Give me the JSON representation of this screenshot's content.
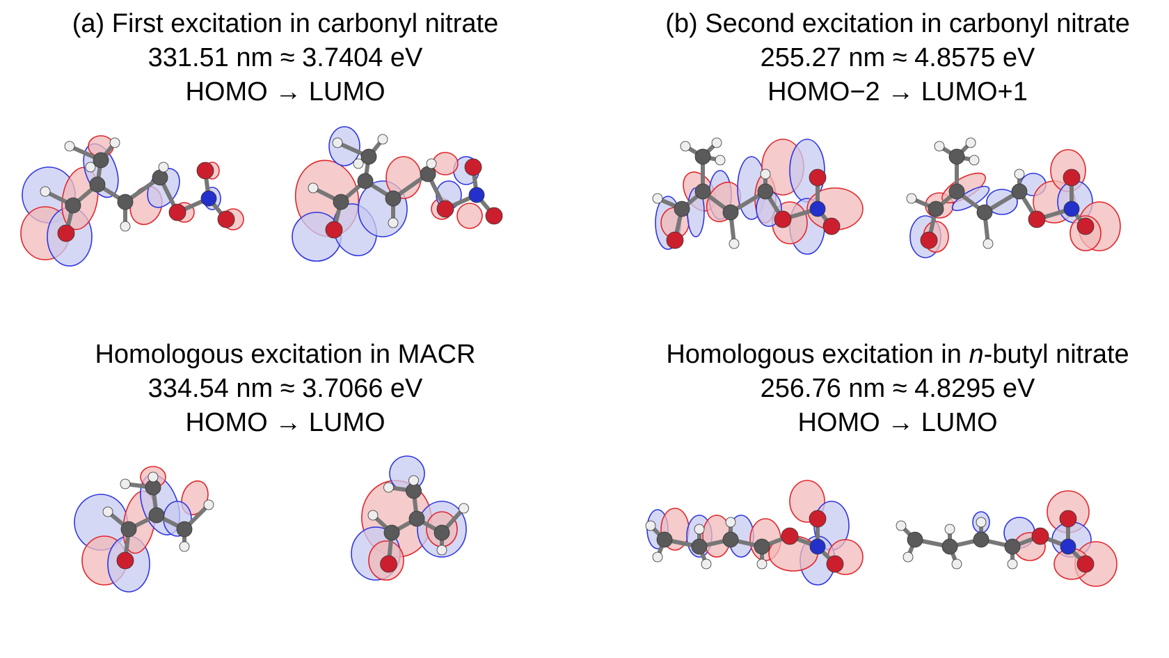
{
  "panels": [
    {
      "lines": [
        "(a) First excitation in carbonyl nitrate",
        "331.51 nm ≈ 3.7404 eV",
        "HOMO → LUMO"
      ]
    },
    {
      "lines": [
        "(b) Second excitation in carbonyl nitrate",
        "255.27 nm ≈ 4.8575 eV",
        "HOMO−2 → LUMO+1"
      ]
    },
    {
      "lines": [
        "Homologous excitation in MACR",
        "334.54 nm ≈ 3.7066 eV",
        "HOMO → LUMO"
      ]
    },
    {
      "title_prefix": "Homologous excitation in ",
      "title_italic": "n",
      "title_suffix": "-butyl nitrate",
      "lines": [
        "",
        "256.76 nm ≈ 4.8295 eV",
        "HOMO → LUMO"
      ]
    }
  ],
  "colors": {
    "lobe_red_fill": "#f2b9b9",
    "lobe_red_edge": "#e0262b",
    "lobe_blue_fill": "#c7cbf0",
    "lobe_blue_edge": "#2d35e0",
    "carbon": "#5a5a5a",
    "oxygen": "#cc1f2e",
    "nitrogen": "#2330cc",
    "hydrogen": "#eeeeee"
  }
}
